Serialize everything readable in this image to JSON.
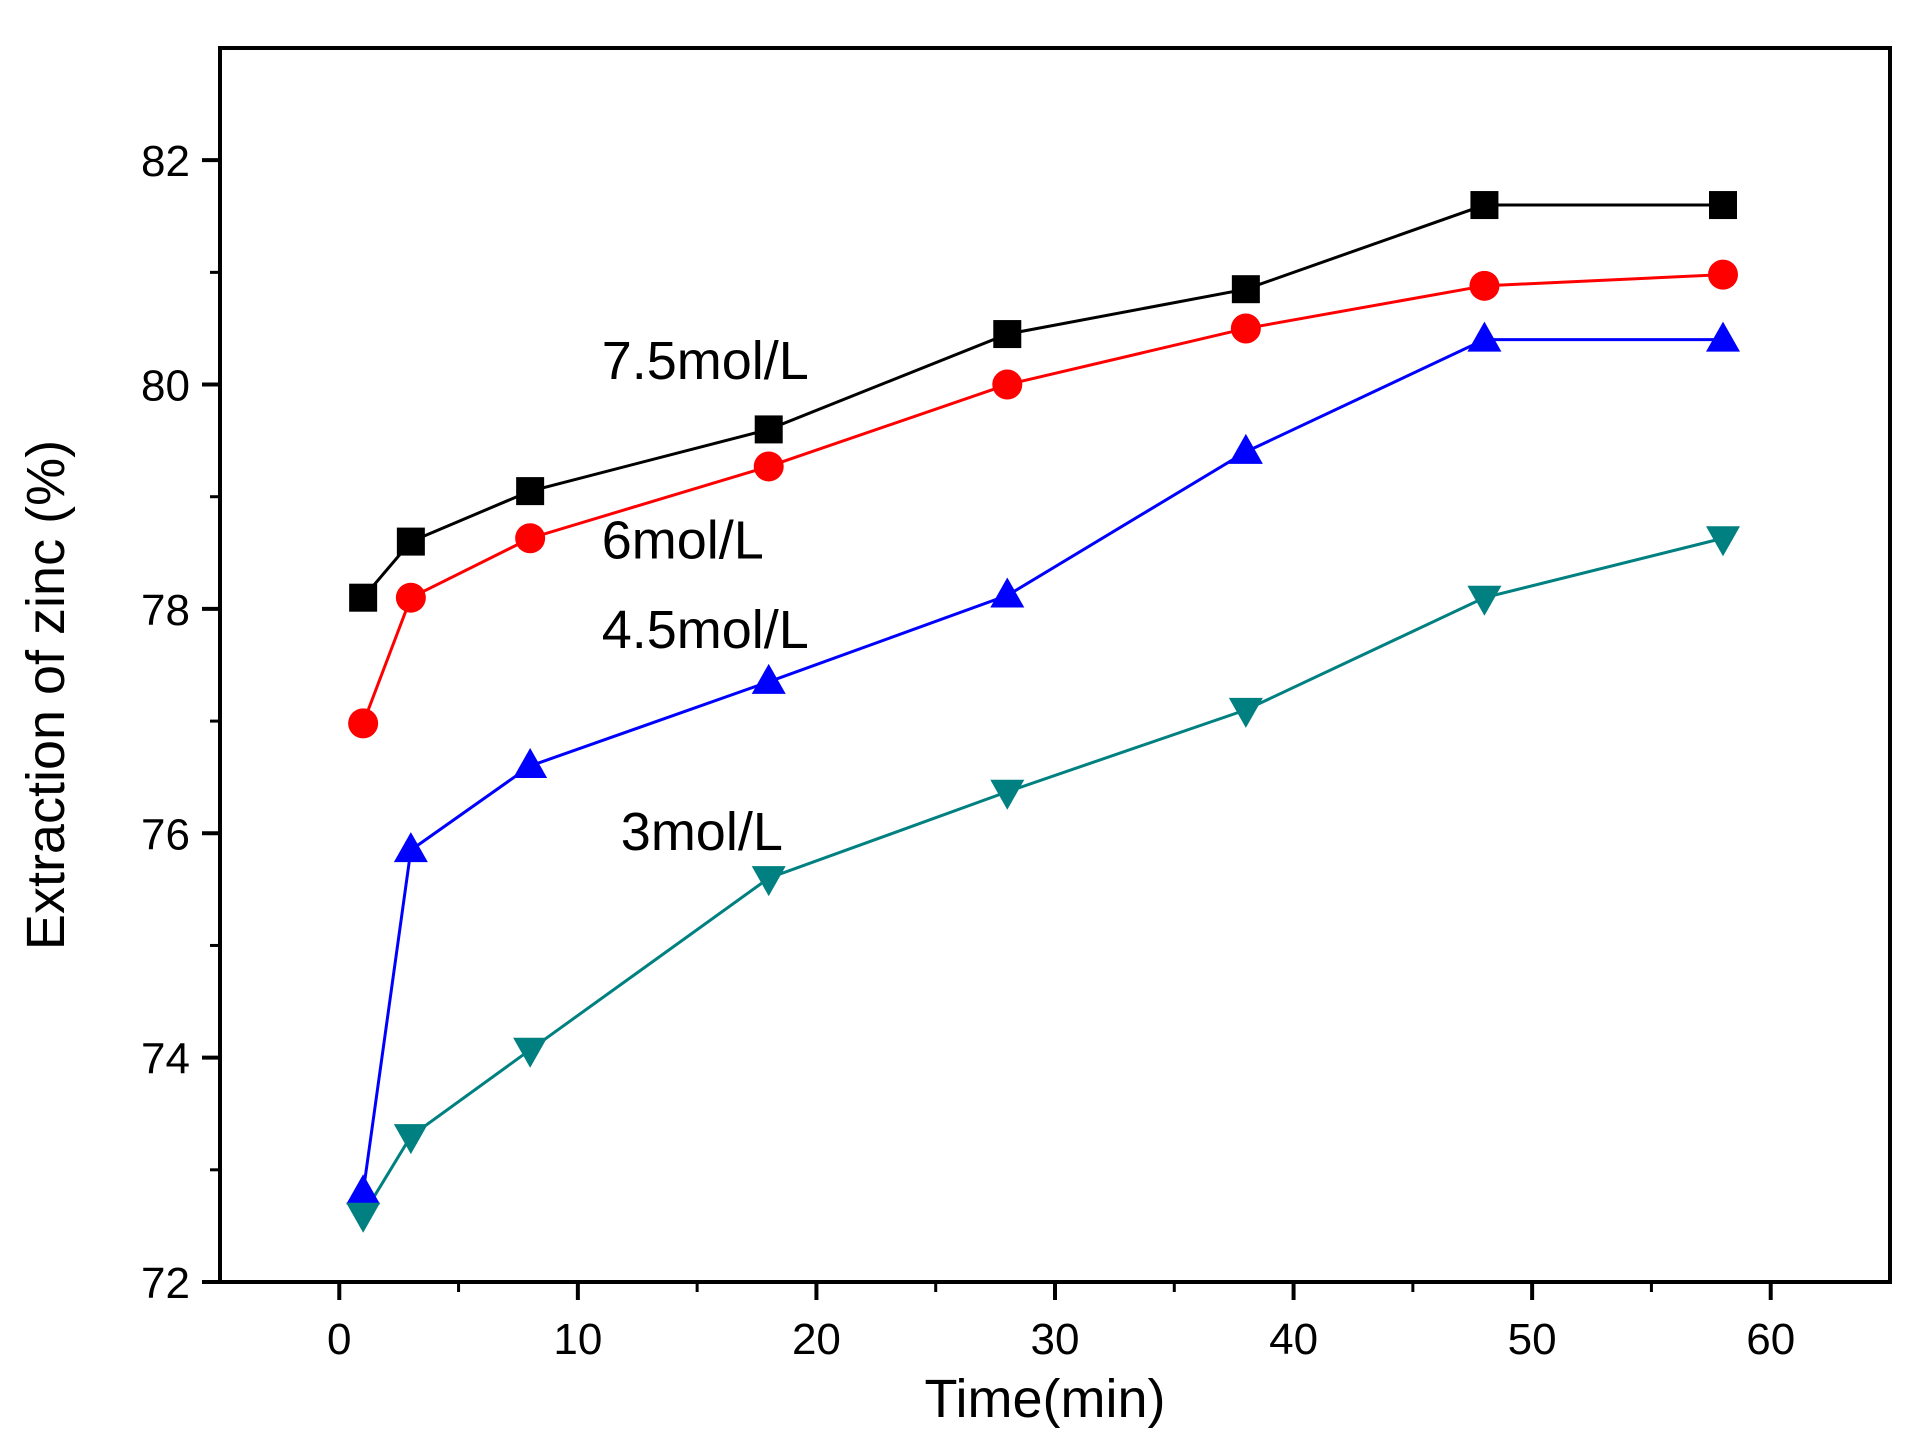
{
  "chart_data": {
    "type": "line",
    "title": "",
    "xlabel": "Time(min)",
    "ylabel": "Extraction of zinc (%)",
    "xlim": [
      -5,
      65
    ],
    "ylim": [
      72,
      83
    ],
    "xticks": [
      0,
      10,
      20,
      30,
      40,
      50,
      60
    ],
    "yticks": [
      72,
      74,
      76,
      78,
      80,
      82
    ],
    "x": [
      1,
      3,
      8,
      18,
      28,
      38,
      48,
      58
    ],
    "series": [
      {
        "name": "7.5mol/L",
        "color": "#000000",
        "marker": "square",
        "values": [
          78.1,
          78.6,
          79.05,
          79.6,
          80.45,
          80.85,
          81.6,
          81.6
        ]
      },
      {
        "name": "6mol/L",
        "color": "#ff0000",
        "marker": "circle",
        "values": [
          76.98,
          78.1,
          78.63,
          79.27,
          80.0,
          80.5,
          80.88,
          80.98
        ]
      },
      {
        "name": "4.5mol/L",
        "color": "#0000ff",
        "marker": "triangle-up",
        "values": [
          72.8,
          75.85,
          76.6,
          77.35,
          78.12,
          79.4,
          80.4,
          80.4
        ]
      },
      {
        "name": "3mol/L",
        "color": "#008080",
        "marker": "triangle-down",
        "values": [
          72.6,
          73.3,
          74.07,
          75.6,
          76.37,
          77.1,
          78.1,
          78.63
        ]
      }
    ],
    "annotations": [
      {
        "text": "7.5mol/L",
        "x": 11.0,
        "y": 80.05
      },
      {
        "text": "6mol/L",
        "x": 11.0,
        "y": 78.45
      },
      {
        "text": "4.5mol/L",
        "x": 11.0,
        "y": 77.65
      },
      {
        "text": "3mol/L",
        "x": 11.8,
        "y": 75.85
      }
    ]
  }
}
